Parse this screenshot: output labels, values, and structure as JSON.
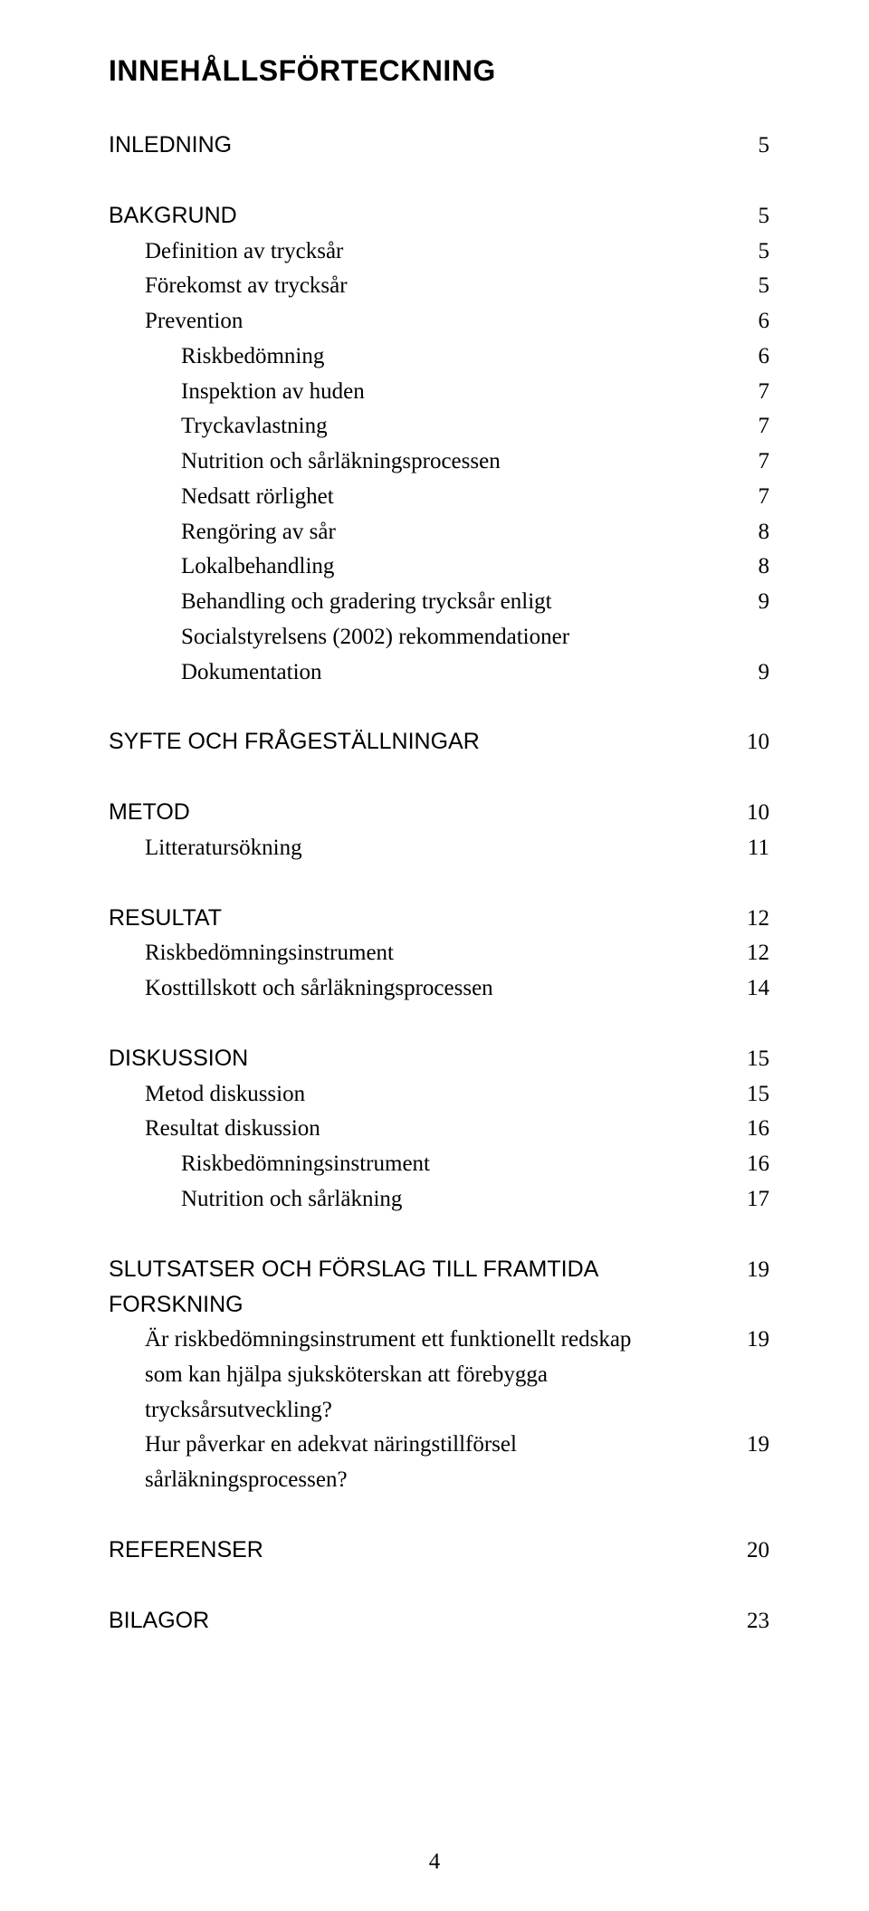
{
  "title": "INNEHÅLLSFÖRTECKNING",
  "page_number": "4",
  "sections": [
    {
      "items": [
        {
          "label": "INLEDNING",
          "page": "5",
          "level": 0,
          "heading": true
        }
      ]
    },
    {
      "items": [
        {
          "label": "BAKGRUND",
          "page": "5",
          "level": 0,
          "heading": true
        },
        {
          "label": "Definition av trycksår",
          "page": "5",
          "level": 1
        },
        {
          "label": "Förekomst av trycksår",
          "page": "5",
          "level": 1
        },
        {
          "label": "Prevention",
          "page": "6",
          "level": 1
        },
        {
          "label": "Riskbedömning",
          "page": "6",
          "level": 2
        },
        {
          "label": "Inspektion av huden",
          "page": "7",
          "level": 2
        },
        {
          "label": "Tryckavlastning",
          "page": "7",
          "level": 2
        },
        {
          "label": "Nutrition och sårläkningsprocessen",
          "page": "7",
          "level": 2
        },
        {
          "label": "Nedsatt rörlighet",
          "page": "7",
          "level": 2
        },
        {
          "label": "Rengöring av sår",
          "page": "8",
          "level": 2
        },
        {
          "label": "Lokalbehandling",
          "page": "8",
          "level": 2
        },
        {
          "label": "Behandling och gradering trycksår enligt",
          "page": "9",
          "level": 2
        },
        {
          "label": "Socialstyrelsens (2002) rekommendationer",
          "page": "",
          "level": 2
        },
        {
          "label": "Dokumentation",
          "page": "9",
          "level": 2
        }
      ]
    },
    {
      "items": [
        {
          "label": "SYFTE OCH FRÅGESTÄLLNINGAR",
          "page": "10",
          "level": 0,
          "heading": true
        }
      ]
    },
    {
      "items": [
        {
          "label": "METOD",
          "page": "10",
          "level": 0,
          "heading": true
        },
        {
          "label": "Litteratursökning",
          "page": "11",
          "level": 1
        }
      ]
    },
    {
      "items": [
        {
          "label": "RESULTAT",
          "page": "12",
          "level": 0,
          "heading": true
        },
        {
          "label": "Riskbedömningsinstrument",
          "page": "12",
          "level": 1
        },
        {
          "label": "Kosttillskott och sårläkningsprocessen",
          "page": "14",
          "level": 1
        }
      ]
    },
    {
      "items": [
        {
          "label": "DISKUSSION",
          "page": "15",
          "level": 0,
          "heading": true
        },
        {
          "label": "Metod diskussion",
          "page": "15",
          "level": 1
        },
        {
          "label": "Resultat diskussion",
          "page": "16",
          "level": 1
        },
        {
          "label": "Riskbedömningsinstrument",
          "page": "16",
          "level": 2
        },
        {
          "label": "Nutrition och sårläkning",
          "page": "17",
          "level": 2
        }
      ]
    },
    {
      "items": [
        {
          "label": "SLUTSATSER OCH FÖRSLAG TILL FRAMTIDA",
          "page": "19",
          "level": 0,
          "heading": true
        },
        {
          "label": "FORSKNING",
          "page": "",
          "level": 0,
          "heading": true
        },
        {
          "label": "Är riskbedömningsinstrument ett funktionellt redskap",
          "page": "19",
          "level": 1
        },
        {
          "label": "som kan hjälpa sjuksköterskan att förebygga",
          "page": "",
          "level": 1
        },
        {
          "label": "trycksårsutveckling?",
          "page": "",
          "level": 1
        },
        {
          "label": "Hur påverkar en adekvat näringstillförsel",
          "page": "19",
          "level": 1
        },
        {
          "label": "sårläkningsprocessen?",
          "page": "",
          "level": 1
        }
      ]
    },
    {
      "items": [
        {
          "label": "REFERENSER",
          "page": "20",
          "level": 0,
          "heading": true
        }
      ]
    },
    {
      "items": [
        {
          "label": "BILAGOR",
          "page": "23",
          "level": 0,
          "heading": true
        }
      ]
    }
  ]
}
